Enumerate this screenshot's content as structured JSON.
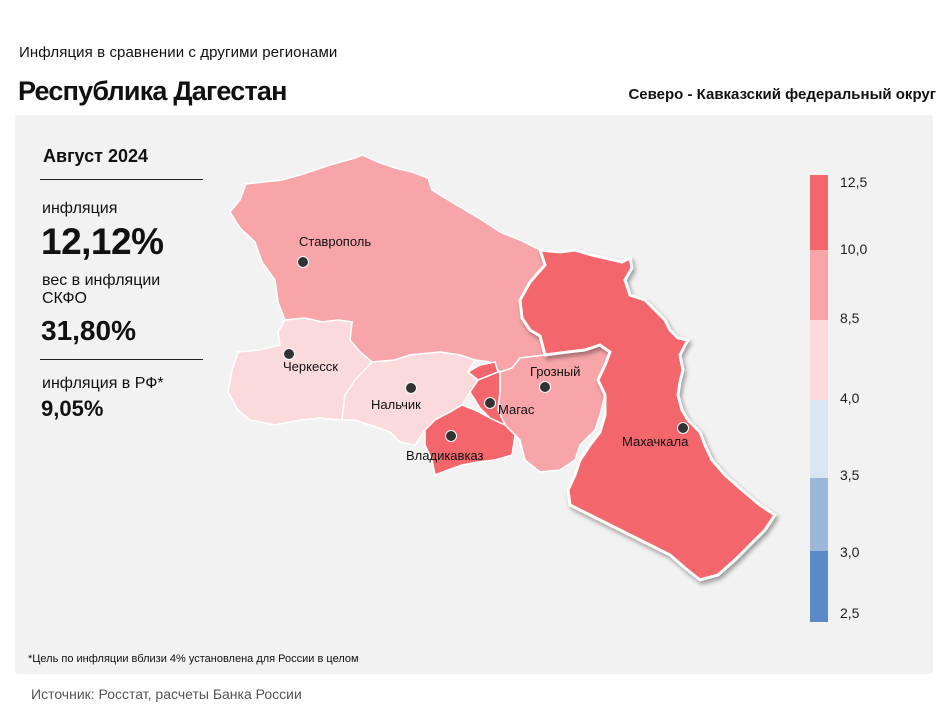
{
  "header": {
    "subtitle": "Инфляция  в сравнении  с другими  регионами",
    "title": "Республика Дагестан",
    "district": "Северо - Кавказский федеральный округ"
  },
  "stats": {
    "period": "Август 2024",
    "inflation_label": "инфляция",
    "inflation_value": "12,12%",
    "weight_label": "вес в инфляции  СКФО",
    "weight_value": "31,80%",
    "rf_label": "инфляция  в РФ*",
    "rf_value": "9,05%"
  },
  "map": {
    "regions": [
      {
        "name": "Ставрополь",
        "inflation_bin": "8,5–10,0",
        "color": "#f7a5a8"
      },
      {
        "name": "Черкесск",
        "inflation_bin": "4,0–8,5",
        "color": "#fadadb"
      },
      {
        "name": "Нальчик",
        "inflation_bin": "4,0–8,5",
        "color": "#fadadb"
      },
      {
        "name": "Владикавказ",
        "inflation_bin": "10,0–12,5",
        "color": "#f2666c"
      },
      {
        "name": "Магас",
        "inflation_bin": "10,0–12,5",
        "color": "#f2666c"
      },
      {
        "name": "Грозный",
        "inflation_bin": "8,5–10,0",
        "color": "#f7a5a8"
      },
      {
        "name": "Махачкала",
        "inflation_bin": "10,0–12,5",
        "color": "#f2666c",
        "highlighted": true
      }
    ]
  },
  "legend": {
    "ticks": [
      "12,5",
      "10,0",
      "8,5",
      "4,0",
      "3,5",
      "3,0",
      "2,5"
    ],
    "colors": [
      "#f2666c",
      "#f7a5a8",
      "#fadadb",
      "#dce6f3",
      "#9cb7da",
      "#5b8bc7"
    ]
  },
  "footnote": "*Цель по инфляции вблизи 4% установлена для России в целом",
  "source": "Источник: Росстат, расчеты Банка России"
}
